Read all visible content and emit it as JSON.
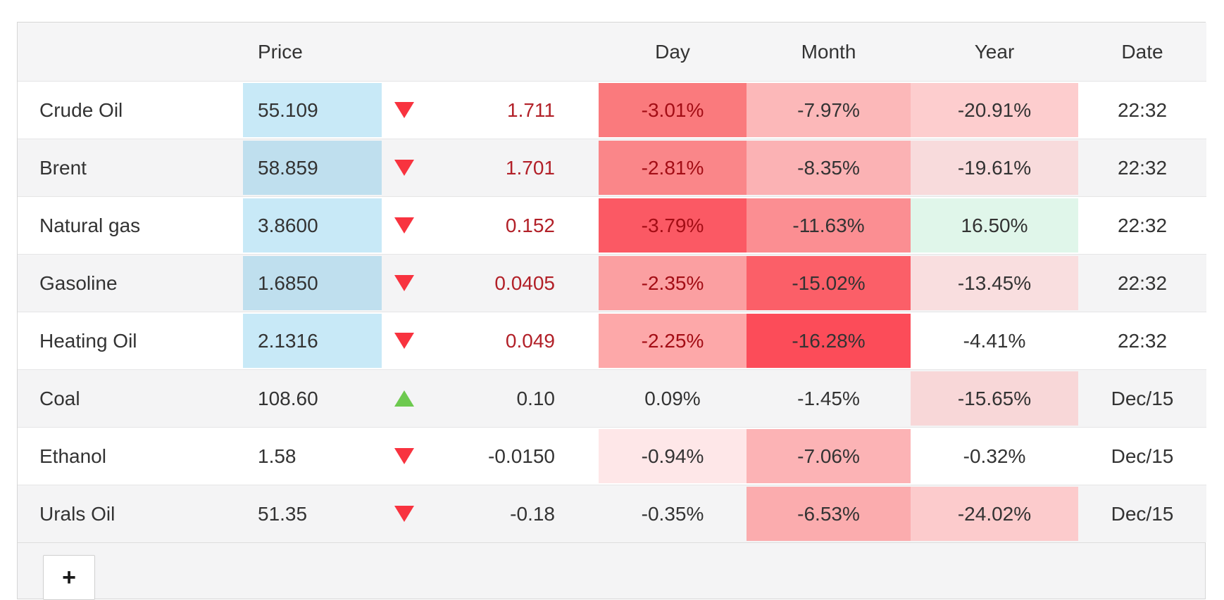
{
  "colors": {
    "arrow_up": "#6dc94f",
    "arrow_down": "#f8333f",
    "price_highlight_blue": "#c8e9f7",
    "price_highlight_blue_striped": "#bfdfee",
    "row_stripe": "#f4f4f5",
    "negative_text_red": "#a30d15",
    "change_text_red": "#b22028",
    "default_text": "#333333",
    "year_positive_green": "#e0f6ea"
  },
  "table": {
    "headers": {
      "name": "",
      "price": "Price",
      "change": "",
      "day": "Day",
      "month": "Month",
      "year": "Year",
      "date": "Date"
    },
    "add_button_label": "+",
    "rows": [
      {
        "name": "Crude Oil",
        "price": "55.109",
        "change": "1.711",
        "day": "-3.01%",
        "month": "-7.97%",
        "year": "-20.91%",
        "date": "22:32",
        "arrow_class": "tri tri-down",
        "price_bg": "#c8e9f7",
        "day_bg": "#fa7a7d",
        "month_bg": "#fcb8b9",
        "year_bg": "#fdcdce",
        "change_color": "#b22028",
        "day_color": "#a30d15"
      },
      {
        "name": "Brent",
        "price": "58.859",
        "change": "1.701",
        "day": "-2.81%",
        "month": "-8.35%",
        "year": "-19.61%",
        "date": "22:32",
        "arrow_class": "tri tri-down",
        "price_bg": "#bfdfee",
        "day_bg": "#fa8689",
        "month_bg": "#fbb2b4",
        "year_bg": "#f8dbdc",
        "change_color": "#b22028",
        "day_color": "#a30d15"
      },
      {
        "name": "Natural gas",
        "price": "3.8600",
        "change": "0.152",
        "day": "-3.79%",
        "month": "-11.63%",
        "year": "16.50%",
        "date": "22:32",
        "arrow_class": "tri tri-down",
        "price_bg": "#c8e9f7",
        "day_bg": "#fb5964",
        "month_bg": "#fb8e92",
        "year_bg": "#e0f6ea",
        "change_color": "#b22028",
        "day_color": "#a30d15"
      },
      {
        "name": "Gasoline",
        "price": "1.6850",
        "change": "0.0405",
        "day": "-2.35%",
        "month": "-15.02%",
        "year": "-13.45%",
        "date": "22:32",
        "arrow_class": "tri tri-down",
        "price_bg": "#bfdfee",
        "day_bg": "#fb9fa1",
        "month_bg": "#fb5f68",
        "year_bg": "#f9dedf",
        "change_color": "#b22028",
        "day_color": "#a30d15"
      },
      {
        "name": "Heating Oil",
        "price": "2.1316",
        "change": "0.049",
        "day": "-2.25%",
        "month": "-16.28%",
        "year": "-4.41%",
        "date": "22:32",
        "arrow_class": "tri tri-down",
        "price_bg": "#c8e9f7",
        "day_bg": "#fda8a9",
        "month_bg": "#fc4c59",
        "year_bg": "transparent",
        "change_color": "#b22028",
        "day_color": "#a30d15"
      },
      {
        "name": "Coal",
        "price": "108.60",
        "change": "0.10",
        "day": "0.09%",
        "month": "-1.45%",
        "year": "-15.65%",
        "date": "Dec/15",
        "arrow_class": "tri tri-up",
        "price_bg": "transparent",
        "day_bg": "transparent",
        "month_bg": "transparent",
        "year_bg": "#f8d7d8",
        "change_color": "#333333",
        "day_color": "#333333"
      },
      {
        "name": "Ethanol",
        "price": "1.58",
        "change": "-0.0150",
        "day": "-0.94%",
        "month": "-7.06%",
        "year": "-0.32%",
        "date": "Dec/15",
        "arrow_class": "tri tri-down",
        "price_bg": "transparent",
        "day_bg": "#fee7e8",
        "month_bg": "#fcb3b5",
        "year_bg": "transparent",
        "change_color": "#333333",
        "day_color": "#333333"
      },
      {
        "name": "Urals Oil",
        "price": "51.35",
        "change": "-0.18",
        "day": "-0.35%",
        "month": "-6.53%",
        "year": "-24.02%",
        "date": "Dec/15",
        "arrow_class": "tri tri-down",
        "price_bg": "transparent",
        "day_bg": "transparent",
        "month_bg": "#fbacae",
        "year_bg": "#fccbcc",
        "change_color": "#333333",
        "day_color": "#333333"
      }
    ]
  }
}
